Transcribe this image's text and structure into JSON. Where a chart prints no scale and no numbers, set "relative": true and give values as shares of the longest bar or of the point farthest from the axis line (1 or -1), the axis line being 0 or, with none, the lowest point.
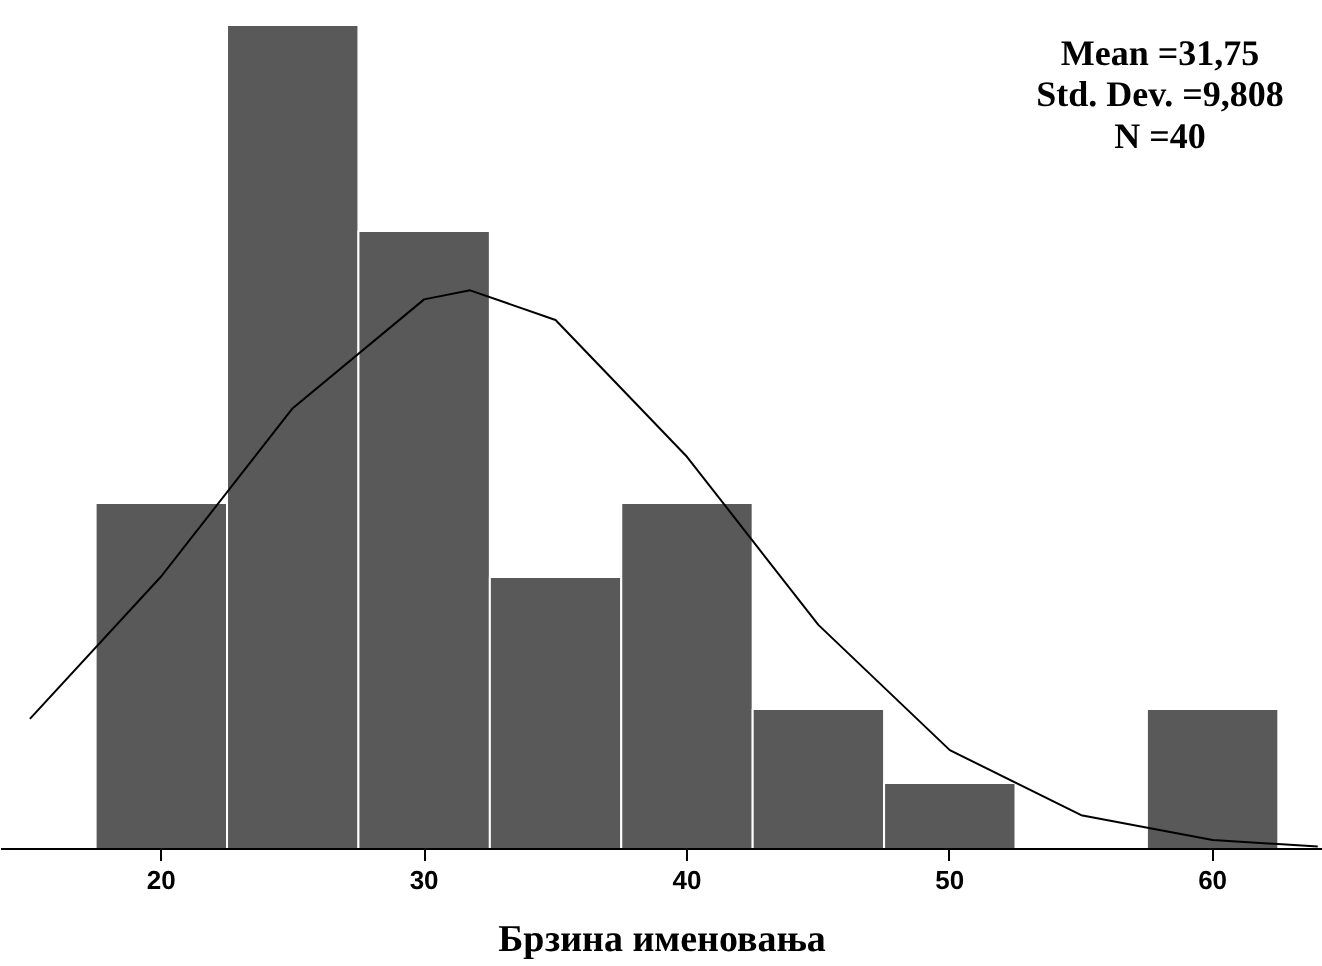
{
  "chart_data": {
    "type": "histogram",
    "relative": true,
    "xlabel": "Брзина именовања",
    "bins": [
      17.5,
      22.5,
      27.5,
      32.5,
      37.5,
      42.5,
      47.5,
      52.5,
      57.5,
      62.5
    ],
    "series": [
      {
        "color": "#595959",
        "values": [
          0.42,
          1,
          0.75,
          0.33,
          0.42,
          0.17,
          0.08,
          0,
          0.17
        ]
      },
      {
        "type": "line",
        "color": "#000000",
        "x": [
          15,
          20,
          25,
          30,
          31.75,
          35,
          40,
          45,
          50,
          55,
          60,
          64
        ],
        "values": [
          0.158,
          0.331,
          0.535,
          0.667,
          0.678,
          0.642,
          0.476,
          0.272,
          0.12,
          0.041,
          0.011,
          0.003
        ]
      }
    ],
    "xlim": [
      13.9,
      64.2
    ],
    "xticks": [
      20,
      30,
      40,
      50,
      60
    ],
    "grid": false,
    "annotations": [
      "Mean =31,75",
      "Std. Dev. =9,808",
      "N =40"
    ]
  }
}
